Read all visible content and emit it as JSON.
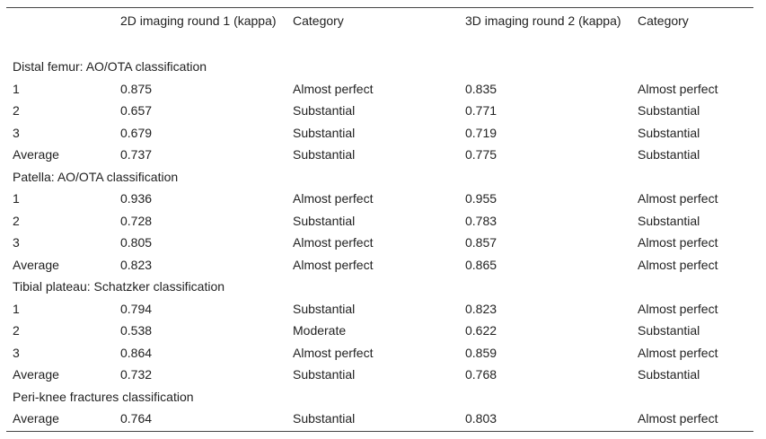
{
  "header": {
    "col1": "2D imaging round 1 (kappa)",
    "col2": "Category",
    "col3": "3D imaging round 2 (kappa)",
    "col4": "Category"
  },
  "sections": [
    {
      "title": "Distal femur: AO/OTA classification",
      "rows": [
        {
          "label": "1",
          "k1": "0.875",
          "cat1": "Almost perfect",
          "k2": "0.835",
          "cat2": "Almost perfect"
        },
        {
          "label": "2",
          "k1": "0.657",
          "cat1": "Substantial",
          "k2": "0.771",
          "cat2": "Substantial"
        },
        {
          "label": "3",
          "k1": "0.679",
          "cat1": "Substantial",
          "k2": "0.719",
          "cat2": "Substantial"
        },
        {
          "label": "Average",
          "k1": "0.737",
          "cat1": "Substantial",
          "k2": "0.775",
          "cat2": "Substantial"
        }
      ]
    },
    {
      "title": "Patella: AO/OTA classification",
      "rows": [
        {
          "label": "1",
          "k1": "0.936",
          "cat1": "Almost perfect",
          "k2": "0.955",
          "cat2": "Almost perfect"
        },
        {
          "label": "2",
          "k1": "0.728",
          "cat1": "Substantial",
          "k2": "0.783",
          "cat2": "Substantial"
        },
        {
          "label": "3",
          "k1": "0.805",
          "cat1": "Almost perfect",
          "k2": "0.857",
          "cat2": "Almost perfect"
        },
        {
          "label": "Average",
          "k1": "0.823",
          "cat1": "Almost perfect",
          "k2": "0.865",
          "cat2": "Almost perfect"
        }
      ]
    },
    {
      "title": "Tibial plateau: Schatzker classification",
      "rows": [
        {
          "label": "1",
          "k1": "0.794",
          "cat1": "Substantial",
          "k2": "0.823",
          "cat2": "Almost perfect"
        },
        {
          "label": "2",
          "k1": "0.538",
          "cat1": "Moderate",
          "k2": "0.622",
          "cat2": "Substantial"
        },
        {
          "label": "3",
          "k1": "0.864",
          "cat1": "Almost perfect",
          "k2": "0.859",
          "cat2": "Almost perfect"
        },
        {
          "label": "Average",
          "k1": "0.732",
          "cat1": "Substantial",
          "k2": "0.768",
          "cat2": "Substantial"
        }
      ]
    },
    {
      "title": "Peri-knee fractures classification",
      "rows": [
        {
          "label": "Average",
          "k1": "0.764",
          "cat1": "Substantial",
          "k2": "0.803",
          "cat2": "Almost perfect"
        }
      ]
    }
  ]
}
